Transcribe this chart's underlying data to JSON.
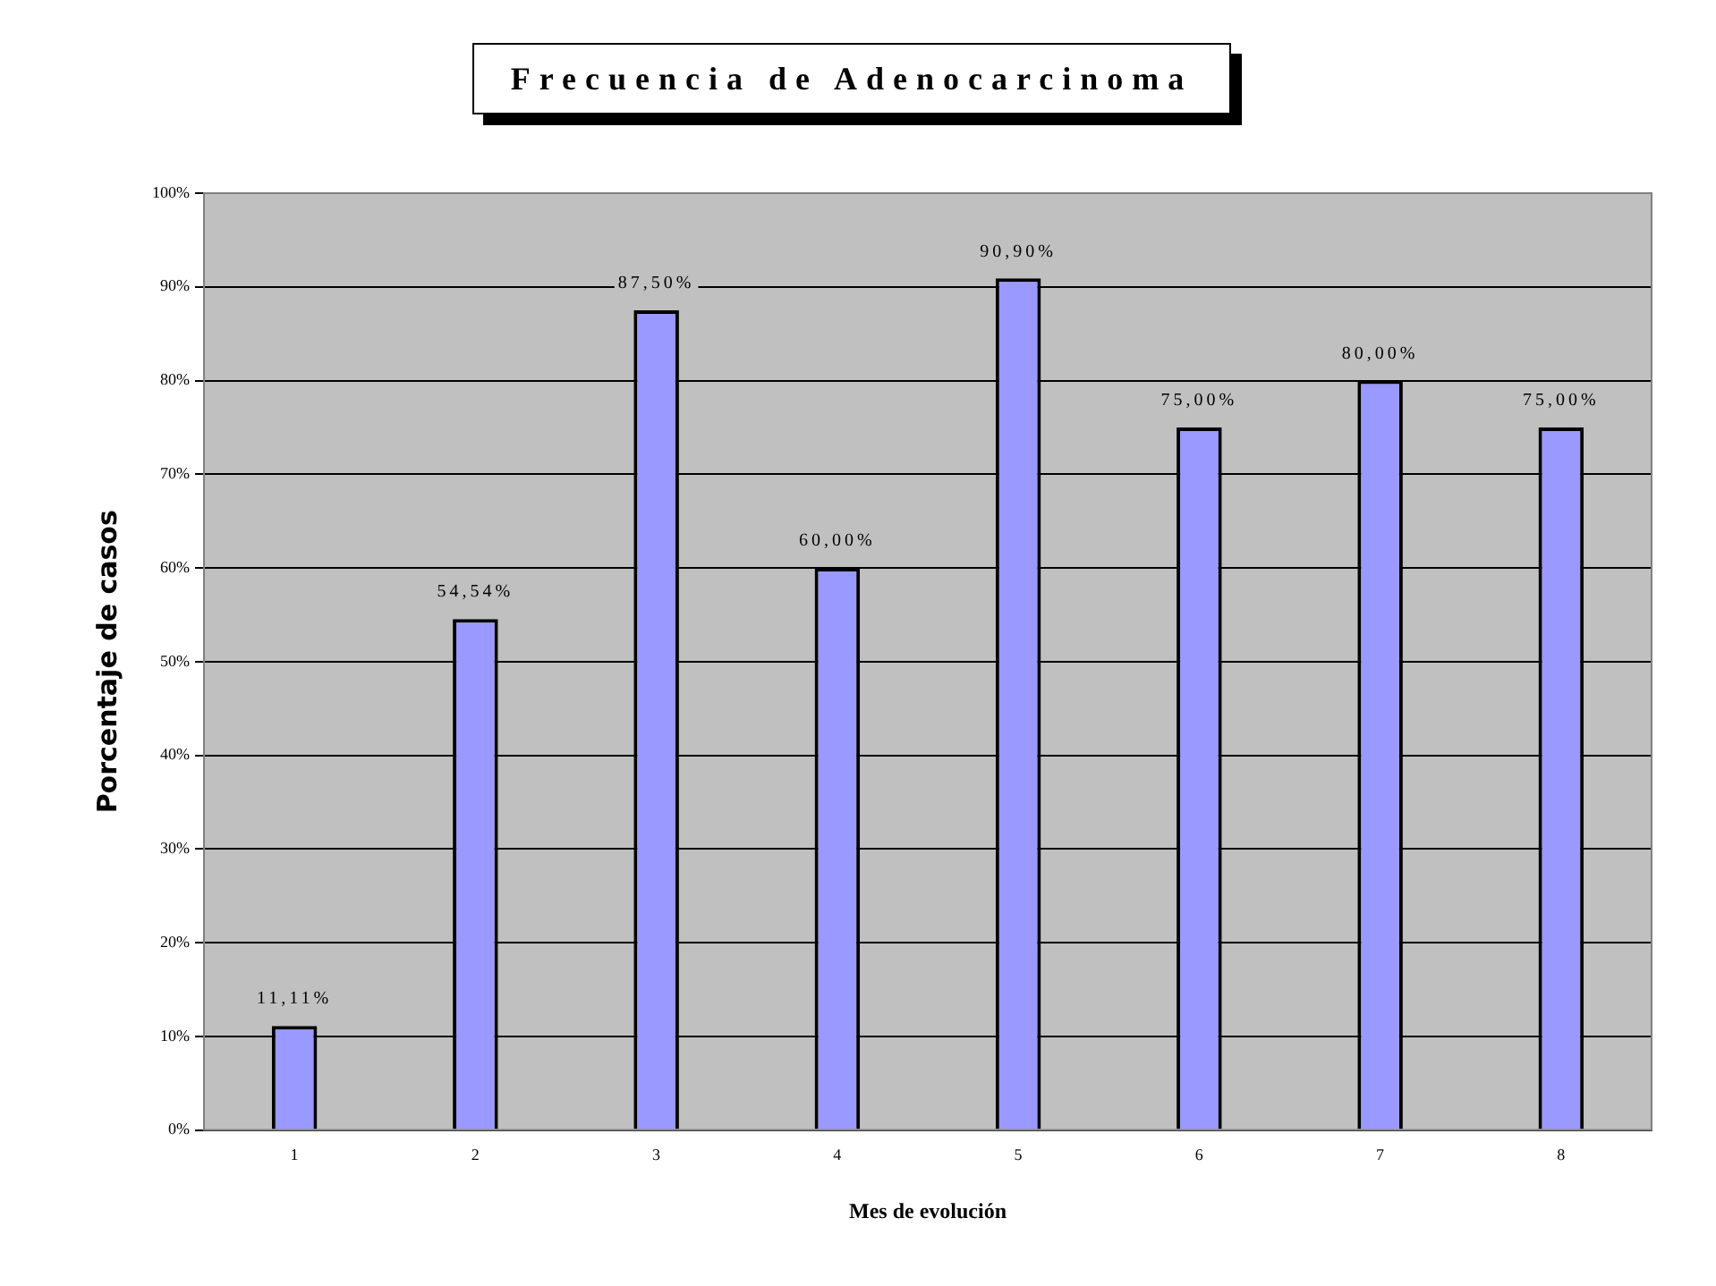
{
  "chart_data": {
    "type": "bar",
    "title": "Frecuencia de Adenocarcinoma",
    "xlabel": "Mes de evolución",
    "ylabel": "Porcentaje de casos",
    "categories": [
      "1",
      "2",
      "3",
      "4",
      "5",
      "6",
      "7",
      "8"
    ],
    "values": [
      11.11,
      54.54,
      87.5,
      60,
      90.9,
      75,
      80,
      75
    ],
    "value_labels": [
      "11,11%",
      "54,54%",
      "87,50%",
      "60,00%",
      "90,90%",
      "75,00%",
      "80,00%",
      "75,00%"
    ],
    "color": "#9999ff",
    "ylim": [
      0,
      100
    ],
    "yticks": [
      {
        "value": 0,
        "label": "0%"
      },
      {
        "value": 10,
        "label": "10%"
      },
      {
        "value": 20,
        "label": "20%"
      },
      {
        "value": 30,
        "label": "30%"
      },
      {
        "value": 40,
        "label": "40%"
      },
      {
        "value": 50,
        "label": "50%"
      },
      {
        "value": 60,
        "label": "60%"
      },
      {
        "value": 70,
        "label": "70%"
      },
      {
        "value": 80,
        "label": "80%"
      },
      {
        "value": 90,
        "label": "90%"
      },
      {
        "value": 100,
        "label": "100%"
      }
    ],
    "grid": "y",
    "legend": false
  }
}
